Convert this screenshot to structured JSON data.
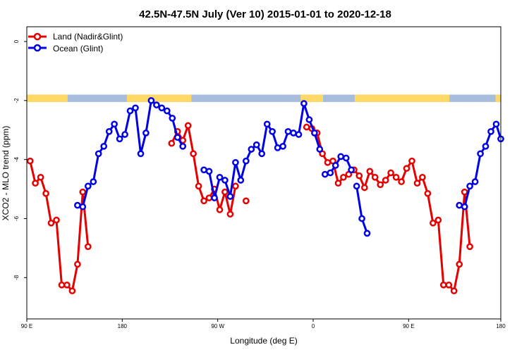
{
  "chart_data": {
    "type": "line",
    "title": "42.5N-47.5N July (Ver 10)   2015-01-01 to 2020-12-18",
    "xlabel": "Longitude (deg E)",
    "ylabel": "XCO2 - MLO trend (ppm)",
    "xlim": [
      90,
      450
    ],
    "ylim": [
      -9.4,
      0.5
    ],
    "x_ticks": [
      {
        "value": 90,
        "label": "90 E"
      },
      {
        "value": 162.5,
        "label": "180"
      },
      {
        "value": 235,
        "label": "90 W"
      },
      {
        "value": 307.5,
        "label": "0"
      },
      {
        "value": 380,
        "label": "90 E"
      },
      {
        "value": 450,
        "label": "180"
      }
    ],
    "y_ticks": [
      {
        "value": 0,
        "label": "0"
      },
      {
        "value": -2,
        "label": "-2"
      },
      {
        "value": -4,
        "label": "-4"
      },
      {
        "value": -6,
        "label": "-6"
      },
      {
        "value": -8,
        "label": "-8"
      }
    ],
    "legend_position": "top-left",
    "colors": {
      "land": "#e60000",
      "ocean": "#0000e6",
      "land_mask": "#ffd966",
      "ocean_mask": "#a6bddb"
    },
    "series": [
      {
        "name": "Land (Nadir&Glint)",
        "color": "#e60000",
        "segments": [
          [
            [
              92.5,
              -4.05
            ],
            [
              96.5,
              -4.8
            ],
            [
              100.5,
              -4.6
            ],
            [
              104.5,
              -5.15
            ],
            [
              108.5,
              -6.15
            ],
            [
              112.5,
              -6.05
            ],
            [
              116.5,
              -8.25
            ],
            [
              120.5,
              -8.25
            ],
            [
              124.5,
              -8.45
            ],
            [
              128.5,
              -7.55
            ],
            [
              132.5,
              -5.1
            ],
            [
              136.5,
              -6.95
            ]
          ],
          [
            [
              200,
              -3.45
            ],
            [
              204.5,
              -3.05
            ],
            [
              208.5,
              -3.35
            ],
            [
              212.5,
              -2.85
            ],
            [
              216.5,
              -3.8
            ],
            [
              220.5,
              -4.9
            ],
            [
              224.5,
              -5.4
            ],
            [
              228.5,
              -5.3
            ],
            [
              232.5,
              -5.0
            ],
            [
              236.5,
              -5.7
            ],
            [
              240.5,
              -5.1
            ],
            [
              244.5,
              -5.85
            ],
            [
              248.5,
              -4.9
            ]
          ],
          [
            [
              256.5,
              -5.4
            ]
          ],
          [
            [
              302.5,
              -2.9
            ],
            [
              306.5,
              -2.95
            ]
          ],
          [
            [
              310.5,
              -3.1
            ],
            [
              314.5,
              -3.8
            ],
            [
              318.5,
              -4.1
            ],
            [
              322.5,
              -4.05
            ],
            [
              326.5,
              -4.8
            ],
            [
              330.5,
              -4.6
            ],
            [
              334.5,
              -4.5
            ],
            [
              338.5,
              -4.35
            ],
            [
              342.5,
              -4.55
            ],
            [
              346.5,
              -4.95
            ],
            [
              350.5,
              -4.4
            ],
            [
              354.5,
              -4.6
            ],
            [
              358.5,
              -4.85
            ],
            [
              362.5,
              -4.7
            ],
            [
              366.5,
              -4.45
            ],
            [
              370.5,
              -4.6
            ],
            [
              374.5,
              -4.75
            ],
            [
              378.5,
              -4.3
            ],
            [
              382.5,
              -4.05
            ],
            [
              386.5,
              -4.8
            ],
            [
              390.5,
              -4.6
            ],
            [
              394.5,
              -5.15
            ],
            [
              398.5,
              -6.15
            ],
            [
              402.5,
              -6.05
            ],
            [
              406.5,
              -8.25
            ],
            [
              410.5,
              -8.25
            ],
            [
              414.5,
              -8.45
            ],
            [
              418.5,
              -7.55
            ],
            [
              422.5,
              -5.1
            ],
            [
              426.5,
              -6.95
            ]
          ]
        ]
      },
      {
        "name": "Ocean (Glint)",
        "color": "#0000e6",
        "segments": [
          [
            [
              128.5,
              -5.55
            ],
            [
              132.5,
              -5.6
            ],
            [
              136.5,
              -4.9
            ],
            [
              140.5,
              -4.75
            ],
            [
              144.5,
              -3.8
            ],
            [
              148.5,
              -3.55
            ],
            [
              152.5,
              -3.05
            ],
            [
              156.5,
              -2.8
            ],
            [
              160.5,
              -3.3
            ],
            [
              164.5,
              -3.15
            ],
            [
              168.5,
              -2.35
            ],
            [
              172.5,
              -2.25
            ],
            [
              176.5,
              -3.8
            ],
            [
              180.5,
              -3.1
            ],
            [
              184.5,
              -2.0
            ],
            [
              188.5,
              -2.15
            ],
            [
              192.5,
              -2.25
            ],
            [
              196.5,
              -2.35
            ],
            [
              200.5,
              -2.6
            ],
            [
              204.5,
              -3.25
            ],
            [
              208.5,
              -3.55
            ]
          ],
          [
            [
              224.5,
              -4.35
            ],
            [
              228.5,
              -4.4
            ],
            [
              232.5,
              -5.3
            ],
            [
              236.5,
              -4.6
            ],
            [
              240.5,
              -4.7
            ],
            [
              244.5,
              -5.25
            ],
            [
              248.5,
              -4.1
            ],
            [
              252.5,
              -4.7
            ],
            [
              256.5,
              -4.05
            ],
            [
              260.5,
              -3.65
            ],
            [
              264.5,
              -3.5
            ],
            [
              268.5,
              -3.8
            ],
            [
              272.5,
              -2.8
            ],
            [
              276.5,
              -3.05
            ],
            [
              280.5,
              -3.6
            ],
            [
              284.5,
              -3.55
            ],
            [
              288.5,
              -3.05
            ],
            [
              292.5,
              -3.1
            ],
            [
              296.5,
              -3.15
            ],
            [
              300.5,
              -2.1
            ],
            [
              304.5,
              -2.65
            ],
            [
              308.5,
              -3.1
            ],
            [
              312.5,
              -3.65
            ]
          ],
          [
            [
              316.5,
              -4.5
            ],
            [
              320.5,
              -4.45
            ],
            [
              324.5,
              -4.2
            ],
            [
              328.5,
              -3.9
            ],
            [
              332.5,
              -3.95
            ],
            [
              336.5,
              -4.35
            ]
          ],
          [
            [
              340.5,
              -4.9
            ],
            [
              344.5,
              -6.0
            ],
            [
              348.5,
              -6.5
            ]
          ],
          [
            [
              418.5,
              -5.55
            ],
            [
              422.5,
              -5.6
            ],
            [
              426.5,
              -4.9
            ],
            [
              430.5,
              -4.75
            ],
            [
              434.5,
              -3.8
            ],
            [
              438.5,
              -3.55
            ],
            [
              442.5,
              -3.05
            ],
            [
              446.5,
              -2.8
            ],
            [
              450,
              -3.3
            ]
          ]
        ]
      }
    ]
  }
}
